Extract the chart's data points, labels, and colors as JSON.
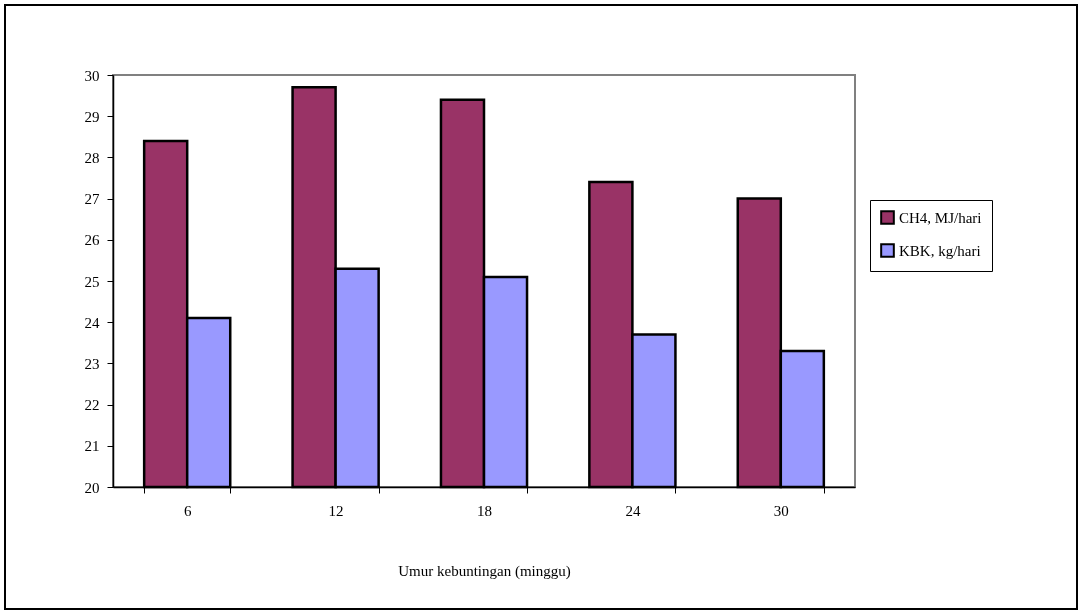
{
  "chart_data": {
    "type": "bar",
    "xlabel": "Umur kebuntingan (minggu)",
    "categories": [
      "6",
      "12",
      "18",
      "24",
      "30"
    ],
    "series": [
      {
        "name": "CH4, MJ/hari",
        "color": "#993366",
        "values": [
          28.4,
          29.7,
          29.4,
          27.4,
          27.0
        ]
      },
      {
        "name": "KBK, kg/hari",
        "color": "#9999ff",
        "values": [
          24.1,
          25.3,
          25.1,
          23.7,
          23.3
        ]
      }
    ],
    "ylim": [
      20,
      30
    ],
    "yticks": [
      20,
      21,
      22,
      23,
      24,
      25,
      26,
      27,
      28,
      29,
      30
    ],
    "legend": "right"
  }
}
